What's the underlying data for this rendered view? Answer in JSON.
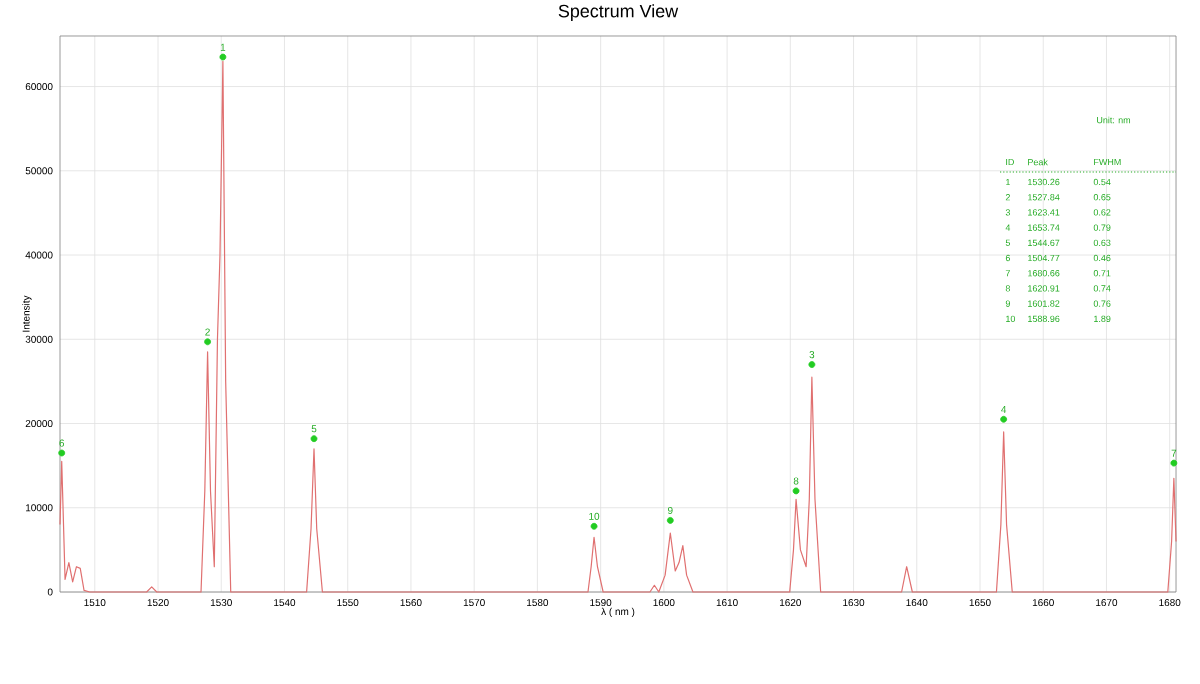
{
  "chart_data": {
    "type": "line",
    "title": "Spectrum View",
    "xlabel": "λ ( nm )",
    "ylabel": "Intensity",
    "xlim": [
      1504.5,
      1681
    ],
    "ylim": [
      0,
      66000
    ],
    "xticks": [
      1510,
      1520,
      1530,
      1540,
      1550,
      1560,
      1570,
      1580,
      1590,
      1600,
      1610,
      1620,
      1630,
      1640,
      1650,
      1660,
      1670,
      1680
    ],
    "yticks": [
      0,
      10000,
      20000,
      30000,
      40000,
      50000,
      60000
    ],
    "grid": true,
    "marker": "none",
    "line_style": "solid",
    "series": [
      {
        "type": "line",
        "color": "#e07070",
        "x": [
          1504.5,
          1504.77,
          1505.3,
          1505.9,
          1506.5,
          1507.1,
          1507.7,
          1508.3,
          1509.2,
          1518.2,
          1519,
          1519.8,
          1526.8,
          1527.4,
          1527.84,
          1528.3,
          1528.9,
          1529.4,
          1529.8,
          1530.26,
          1530.7,
          1531.5,
          1543.5,
          1544.2,
          1544.67,
          1545.1,
          1546,
          1588,
          1588.5,
          1588.96,
          1589.5,
          1590.4,
          1597.8,
          1598.5,
          1599.2,
          1600.2,
          1601.02,
          1601.8,
          1602.4,
          1603,
          1603.6,
          1604.6,
          1619.9,
          1620.5,
          1620.91,
          1621.6,
          1622.5,
          1623,
          1623.41,
          1623.9,
          1624.8,
          1637.6,
          1638.4,
          1639.3,
          1652.6,
          1653.3,
          1653.74,
          1654.2,
          1655.1,
          1679.7,
          1680.3,
          1680.66,
          1681
        ],
        "values": [
          8000,
          15500,
          1500,
          3500,
          1200,
          3000,
          2800,
          200,
          0,
          0,
          600,
          0,
          0,
          12000,
          28500,
          12000,
          3000,
          30000,
          40000,
          63000,
          25000,
          0,
          0,
          7500,
          17000,
          7500,
          0,
          0,
          3000,
          6500,
          3000,
          0,
          0,
          800,
          0,
          2000,
          7000,
          2500,
          3500,
          5500,
          2000,
          0,
          0,
          5000,
          11000,
          5000,
          3000,
          11000,
          25500,
          11000,
          0,
          0,
          3000,
          0,
          0,
          8000,
          19000,
          8000,
          0,
          0,
          6000,
          13500,
          6000
        ]
      },
      {
        "type": "scatter",
        "color": "#22cc22",
        "marker": "circle",
        "x": [
          1530.26,
          1527.84,
          1623.41,
          1653.74,
          1544.67,
          1504.77,
          1680.66,
          1620.91,
          1601.02,
          1588.96
        ],
        "values": [
          63500,
          29700,
          27000,
          20500,
          18200,
          16500,
          15300,
          12000,
          8500,
          7800
        ]
      }
    ],
    "annotations": [
      {
        "text": "1",
        "x": 1530.26,
        "y": 63500
      },
      {
        "text": "2",
        "x": 1527.84,
        "y": 29700
      },
      {
        "text": "3",
        "x": 1623.41,
        "y": 27000
      },
      {
        "text": "4",
        "x": 1653.74,
        "y": 20500
      },
      {
        "text": "5",
        "x": 1544.67,
        "y": 18200
      },
      {
        "text": "6",
        "x": 1504.77,
        "y": 16500
      },
      {
        "text": "7",
        "x": 1680.66,
        "y": 15300
      },
      {
        "text": "8",
        "x": 1620.91,
        "y": 12000
      },
      {
        "text": "9",
        "x": 1601.02,
        "y": 8500
      },
      {
        "text": "10",
        "x": 1588.96,
        "y": 7800
      },
      "Unit: nm",
      "ID",
      "Peak",
      "FWHM",
      "1",
      "1530.26",
      "0.54",
      "2",
      "1527.84",
      "0.65",
      "3",
      "1623.41",
      "0.62",
      "4",
      "1653.74",
      "0.79",
      "5",
      "1544.67",
      "0.63",
      "6",
      "1504.77",
      "0.46",
      "7",
      "1680.66",
      "0.71",
      "8",
      "1620.91",
      "0.74",
      "9",
      "1601.82",
      "0.76",
      "10",
      "1588.96",
      "1.89"
    ]
  }
}
